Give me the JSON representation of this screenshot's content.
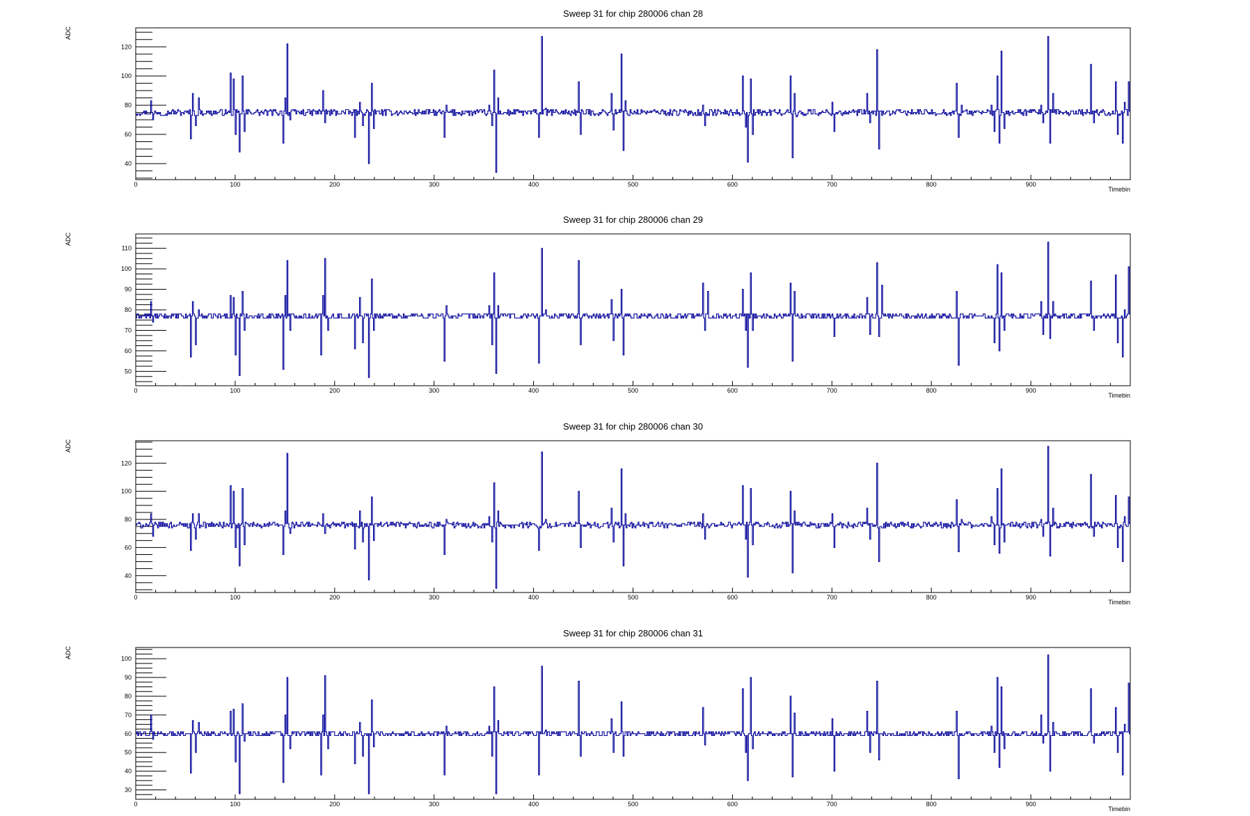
{
  "colors": {
    "line": "#000099",
    "frame": "#000000",
    "background": "#ffffff"
  },
  "chart_data": [
    {
      "type": "line",
      "title": "Sweep 31 for chip 280006 chan 28",
      "xlabel": "Timebin",
      "ylabel": "ADC",
      "xlim": [
        0,
        1000
      ],
      "ylim": [
        29,
        133
      ],
      "xticks": [
        0,
        100,
        200,
        300,
        400,
        500,
        600,
        700,
        800,
        900
      ],
      "yticks": [
        40,
        60,
        80,
        100,
        120
      ],
      "baseline": 75,
      "noise": 2,
      "spikes": [
        [
          15,
          83
        ],
        [
          17,
          70
        ],
        [
          55,
          57
        ],
        [
          57,
          88
        ],
        [
          60,
          66
        ],
        [
          63,
          85
        ],
        [
          95,
          102
        ],
        [
          98,
          98
        ],
        [
          100,
          60
        ],
        [
          104,
          48
        ],
        [
          107,
          100
        ],
        [
          109,
          62
        ],
        [
          148,
          54
        ],
        [
          150,
          85
        ],
        [
          152,
          122
        ],
        [
          155,
          70
        ],
        [
          188,
          90
        ],
        [
          190,
          68
        ],
        [
          220,
          58
        ],
        [
          225,
          82
        ],
        [
          228,
          66
        ],
        [
          234,
          40
        ],
        [
          237,
          95
        ],
        [
          239,
          64
        ],
        [
          310,
          58
        ],
        [
          312,
          80
        ],
        [
          355,
          80
        ],
        [
          358,
          66
        ],
        [
          360,
          104
        ],
        [
          362,
          34
        ],
        [
          364,
          85
        ],
        [
          405,
          58
        ],
        [
          408,
          127
        ],
        [
          412,
          78
        ],
        [
          445,
          96
        ],
        [
          447,
          60
        ],
        [
          478,
          88
        ],
        [
          480,
          63
        ],
        [
          488,
          115
        ],
        [
          490,
          49
        ],
        [
          492,
          83
        ],
        [
          570,
          80
        ],
        [
          572,
          66
        ],
        [
          610,
          100
        ],
        [
          613,
          65
        ],
        [
          615,
          41
        ],
        [
          618,
          98
        ],
        [
          620,
          60
        ],
        [
          658,
          100
        ],
        [
          660,
          44
        ],
        [
          662,
          88
        ],
        [
          664,
          72
        ],
        [
          700,
          82
        ],
        [
          702,
          62
        ],
        [
          735,
          88
        ],
        [
          738,
          68
        ],
        [
          745,
          118
        ],
        [
          747,
          50
        ],
        [
          825,
          95
        ],
        [
          827,
          58
        ],
        [
          830,
          80
        ],
        [
          860,
          80
        ],
        [
          863,
          62
        ],
        [
          866,
          100
        ],
        [
          868,
          54
        ],
        [
          870,
          117
        ],
        [
          873,
          64
        ],
        [
          910,
          80
        ],
        [
          912,
          68
        ],
        [
          917,
          127
        ],
        [
          919,
          54
        ],
        [
          922,
          88
        ],
        [
          960,
          108
        ],
        [
          963,
          68
        ],
        [
          985,
          96
        ],
        [
          987,
          60
        ],
        [
          992,
          54
        ],
        [
          994,
          82
        ],
        [
          998,
          96
        ]
      ]
    },
    {
      "type": "line",
      "title": "Sweep 31 for chip 280006 chan 29",
      "xlabel": "Timebin",
      "ylabel": "ADC",
      "xlim": [
        0,
        1000
      ],
      "ylim": [
        43,
        117
      ],
      "xticks": [
        0,
        100,
        200,
        300,
        400,
        500,
        600,
        700,
        800,
        900
      ],
      "yticks": [
        50,
        60,
        70,
        80,
        90,
        100,
        110
      ],
      "baseline": 77,
      "noise": 1.5,
      "spikes": [
        [
          15,
          84
        ],
        [
          17,
          74
        ],
        [
          55,
          57
        ],
        [
          57,
          84
        ],
        [
          60,
          63
        ],
        [
          63,
          80
        ],
        [
          95,
          87
        ],
        [
          98,
          86
        ],
        [
          100,
          58
        ],
        [
          104,
          48
        ],
        [
          107,
          89
        ],
        [
          109,
          70
        ],
        [
          148,
          51
        ],
        [
          150,
          87
        ],
        [
          152,
          104
        ],
        [
          155,
          70
        ],
        [
          186,
          58
        ],
        [
          188,
          87
        ],
        [
          190,
          105
        ],
        [
          193,
          70
        ],
        [
          220,
          61
        ],
        [
          225,
          86
        ],
        [
          228,
          64
        ],
        [
          234,
          47
        ],
        [
          237,
          95
        ],
        [
          239,
          70
        ],
        [
          310,
          55
        ],
        [
          312,
          82
        ],
        [
          355,
          82
        ],
        [
          358,
          63
        ],
        [
          360,
          98
        ],
        [
          362,
          49
        ],
        [
          364,
          82
        ],
        [
          405,
          54
        ],
        [
          408,
          110
        ],
        [
          412,
          80
        ],
        [
          445,
          104
        ],
        [
          447,
          63
        ],
        [
          478,
          85
        ],
        [
          480,
          65
        ],
        [
          488,
          90
        ],
        [
          490,
          58
        ],
        [
          570,
          93
        ],
        [
          572,
          70
        ],
        [
          575,
          89
        ],
        [
          610,
          90
        ],
        [
          613,
          70
        ],
        [
          615,
          52
        ],
        [
          618,
          98
        ],
        [
          620,
          70
        ],
        [
          658,
          93
        ],
        [
          660,
          55
        ],
        [
          662,
          89
        ],
        [
          700,
          78
        ],
        [
          702,
          67
        ],
        [
          735,
          86
        ],
        [
          738,
          68
        ],
        [
          745,
          103
        ],
        [
          747,
          67
        ],
        [
          750,
          92
        ],
        [
          825,
          89
        ],
        [
          827,
          53
        ],
        [
          860,
          77
        ],
        [
          863,
          64
        ],
        [
          866,
          102
        ],
        [
          868,
          60
        ],
        [
          870,
          98
        ],
        [
          873,
          70
        ],
        [
          910,
          84
        ],
        [
          912,
          68
        ],
        [
          917,
          113
        ],
        [
          919,
          66
        ],
        [
          922,
          84
        ],
        [
          960,
          94
        ],
        [
          963,
          70
        ],
        [
          985,
          97
        ],
        [
          987,
          64
        ],
        [
          992,
          57
        ],
        [
          994,
          80
        ],
        [
          998,
          101
        ]
      ]
    },
    {
      "type": "line",
      "title": "Sweep 31 for chip 280006 chan 30",
      "xlabel": "Timebin",
      "ylabel": "ADC",
      "xlim": [
        0,
        1000
      ],
      "ylim": [
        28,
        136
      ],
      "xticks": [
        0,
        100,
        200,
        300,
        400,
        500,
        600,
        700,
        800,
        900
      ],
      "yticks": [
        40,
        60,
        80,
        100,
        120
      ],
      "baseline": 76,
      "noise": 2,
      "spikes": [
        [
          15,
          84
        ],
        [
          17,
          68
        ],
        [
          55,
          58
        ],
        [
          57,
          84
        ],
        [
          60,
          66
        ],
        [
          63,
          84
        ],
        [
          95,
          104
        ],
        [
          98,
          100
        ],
        [
          100,
          60
        ],
        [
          104,
          47
        ],
        [
          107,
          102
        ],
        [
          109,
          62
        ],
        [
          148,
          55
        ],
        [
          150,
          86
        ],
        [
          152,
          127
        ],
        [
          155,
          70
        ],
        [
          188,
          84
        ],
        [
          190,
          70
        ],
        [
          220,
          59
        ],
        [
          225,
          86
        ],
        [
          228,
          64
        ],
        [
          234,
          37
        ],
        [
          237,
          96
        ],
        [
          239,
          65
        ],
        [
          310,
          55
        ],
        [
          312,
          80
        ],
        [
          355,
          82
        ],
        [
          358,
          64
        ],
        [
          360,
          106
        ],
        [
          362,
          31
        ],
        [
          364,
          86
        ],
        [
          405,
          58
        ],
        [
          408,
          128
        ],
        [
          412,
          80
        ],
        [
          445,
          100
        ],
        [
          447,
          60
        ],
        [
          478,
          88
        ],
        [
          480,
          64
        ],
        [
          488,
          116
        ],
        [
          490,
          47
        ],
        [
          492,
          84
        ],
        [
          570,
          84
        ],
        [
          572,
          66
        ],
        [
          610,
          104
        ],
        [
          613,
          66
        ],
        [
          615,
          39
        ],
        [
          618,
          102
        ],
        [
          620,
          62
        ],
        [
          658,
          100
        ],
        [
          660,
          42
        ],
        [
          662,
          86
        ],
        [
          700,
          84
        ],
        [
          702,
          60
        ],
        [
          735,
          88
        ],
        [
          738,
          66
        ],
        [
          745,
          120
        ],
        [
          747,
          50
        ],
        [
          825,
          94
        ],
        [
          827,
          57
        ],
        [
          830,
          80
        ],
        [
          860,
          82
        ],
        [
          863,
          62
        ],
        [
          866,
          102
        ],
        [
          868,
          56
        ],
        [
          870,
          116
        ],
        [
          873,
          64
        ],
        [
          910,
          80
        ],
        [
          912,
          68
        ],
        [
          917,
          132
        ],
        [
          919,
          54
        ],
        [
          922,
          88
        ],
        [
          960,
          112
        ],
        [
          963,
          68
        ],
        [
          985,
          97
        ],
        [
          987,
          60
        ],
        [
          992,
          50
        ],
        [
          994,
          82
        ],
        [
          998,
          96
        ]
      ]
    },
    {
      "type": "line",
      "title": "Sweep 31 for chip 280006 chan 31",
      "xlabel": "Timebin",
      "ylabel": "ADC",
      "xlim": [
        0,
        1000
      ],
      "ylim": [
        25,
        106
      ],
      "xticks": [
        0,
        100,
        200,
        300,
        400,
        500,
        600,
        700,
        800,
        900
      ],
      "yticks": [
        30,
        40,
        50,
        60,
        70,
        80,
        90,
        100
      ],
      "baseline": 60,
      "noise": 1.5,
      "spikes": [
        [
          15,
          70
        ],
        [
          17,
          57
        ],
        [
          55,
          39
        ],
        [
          57,
          67
        ],
        [
          60,
          50
        ],
        [
          63,
          66
        ],
        [
          95,
          72
        ],
        [
          98,
          73
        ],
        [
          100,
          45
        ],
        [
          104,
          28
        ],
        [
          107,
          76
        ],
        [
          109,
          56
        ],
        [
          148,
          34
        ],
        [
          150,
          70
        ],
        [
          152,
          90
        ],
        [
          155,
          52
        ],
        [
          186,
          38
        ],
        [
          188,
          70
        ],
        [
          190,
          91
        ],
        [
          193,
          52
        ],
        [
          220,
          44
        ],
        [
          225,
          66
        ],
        [
          228,
          48
        ],
        [
          234,
          28
        ],
        [
          237,
          78
        ],
        [
          239,
          53
        ],
        [
          310,
          38
        ],
        [
          312,
          64
        ],
        [
          355,
          64
        ],
        [
          358,
          48
        ],
        [
          360,
          85
        ],
        [
          362,
          28
        ],
        [
          364,
          67
        ],
        [
          405,
          38
        ],
        [
          408,
          96
        ],
        [
          412,
          62
        ],
        [
          445,
          88
        ],
        [
          447,
          48
        ],
        [
          478,
          68
        ],
        [
          480,
          50
        ],
        [
          488,
          77
        ],
        [
          490,
          48
        ],
        [
          570,
          74
        ],
        [
          572,
          54
        ],
        [
          610,
          84
        ],
        [
          613,
          50
        ],
        [
          615,
          35
        ],
        [
          618,
          90
        ],
        [
          620,
          52
        ],
        [
          658,
          80
        ],
        [
          660,
          37
        ],
        [
          662,
          71
        ],
        [
          700,
          68
        ],
        [
          702,
          40
        ],
        [
          735,
          72
        ],
        [
          738,
          50
        ],
        [
          745,
          88
        ],
        [
          747,
          46
        ],
        [
          825,
          72
        ],
        [
          827,
          36
        ],
        [
          860,
          64
        ],
        [
          863,
          50
        ],
        [
          866,
          90
        ],
        [
          868,
          42
        ],
        [
          870,
          85
        ],
        [
          873,
          52
        ],
        [
          910,
          70
        ],
        [
          912,
          55
        ],
        [
          917,
          102
        ],
        [
          919,
          40
        ],
        [
          922,
          66
        ],
        [
          960,
          84
        ],
        [
          963,
          55
        ],
        [
          985,
          74
        ],
        [
          987,
          50
        ],
        [
          992,
          38
        ],
        [
          994,
          65
        ],
        [
          998,
          87
        ]
      ]
    }
  ]
}
